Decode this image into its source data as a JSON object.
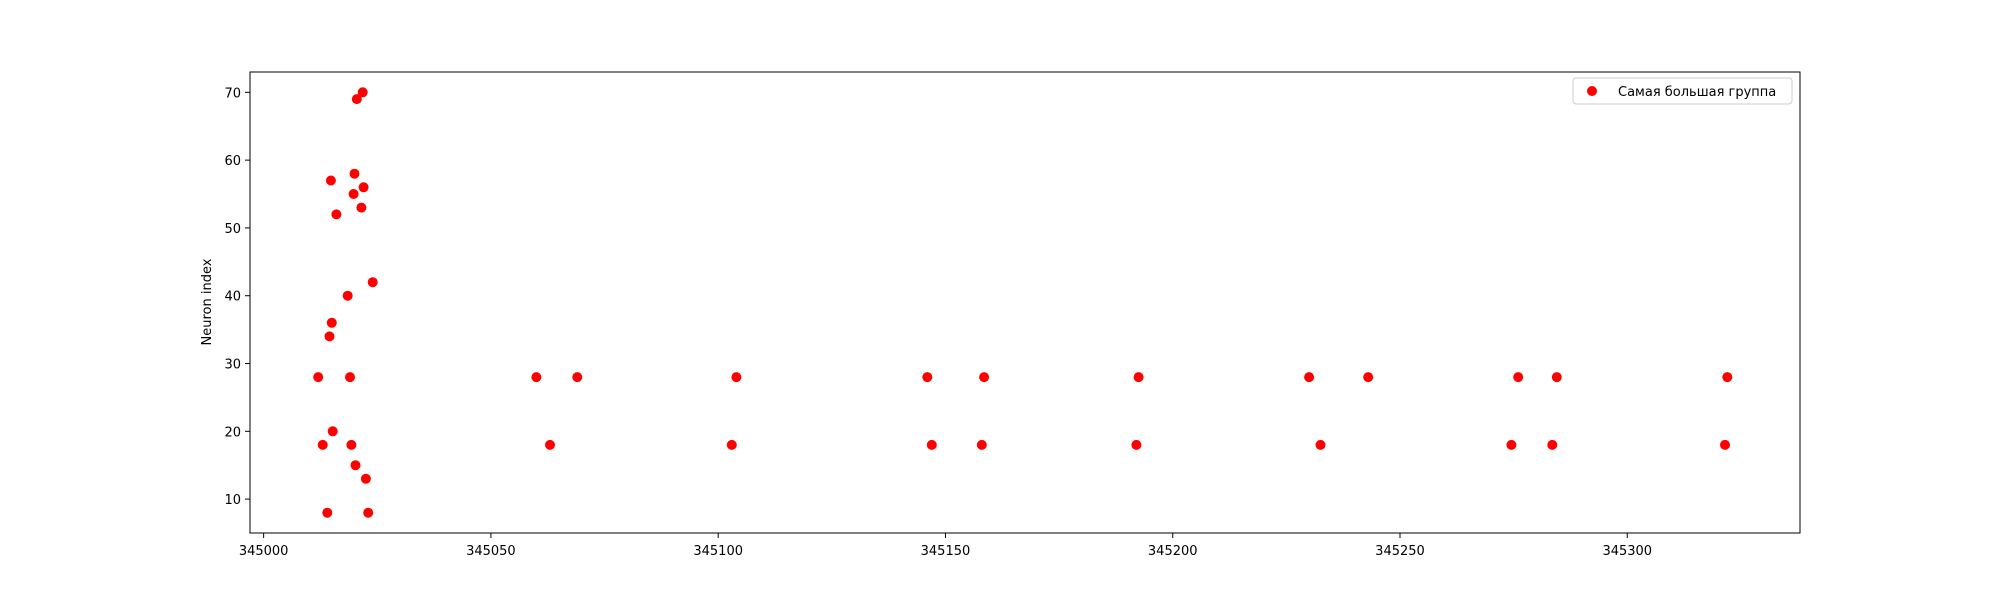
{
  "chart_data": {
    "type": "scatter",
    "title": "",
    "xlabel": "",
    "ylabel": "Neuron index",
    "xlim": [
      344997,
      345338
    ],
    "ylim": [
      5,
      73
    ],
    "xticks": [
      345000,
      345050,
      345100,
      345150,
      345200,
      345250,
      345300
    ],
    "yticks": [
      10,
      20,
      30,
      40,
      50,
      60,
      70
    ],
    "grid": false,
    "legend_position": "top-right",
    "series": [
      {
        "name": "Самая большая группа",
        "color": "#ff0000",
        "x": [
          345012,
          345013,
          345014,
          345014.5,
          345014.8,
          345015,
          345015.2,
          345016,
          345018.5,
          345019,
          345019.3,
          345019.8,
          345020,
          345020.2,
          345020.5,
          345021.5,
          345021.8,
          345022,
          345022.5,
          345023,
          345024,
          345060,
          345063,
          345069,
          345103,
          345104,
          345146,
          345147,
          345158,
          345158.5,
          345192,
          345192.5,
          345230,
          345232.5,
          345243,
          345274.5,
          345276,
          345283.5,
          345284.5,
          345321.5,
          345322
        ],
        "y": [
          28,
          18,
          8,
          34,
          57,
          36,
          20,
          52,
          40,
          28,
          18,
          55,
          58,
          15,
          69,
          53,
          70,
          56,
          13,
          8,
          42,
          28,
          18,
          28,
          18,
          28,
          28,
          18,
          18,
          28,
          18,
          28,
          28,
          18,
          28,
          18,
          28,
          18,
          28,
          18,
          28
        ]
      }
    ]
  }
}
